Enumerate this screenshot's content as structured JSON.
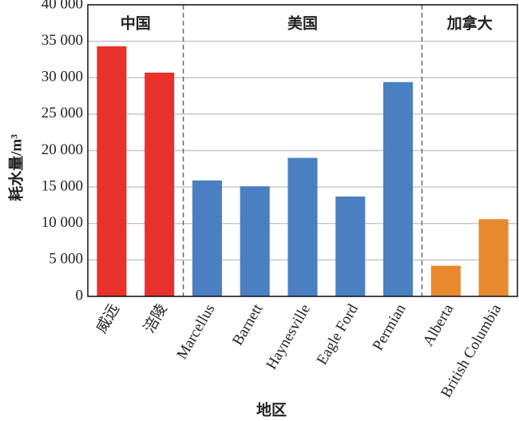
{
  "chart_data": {
    "type": "bar",
    "y_label": "耗水量/m³",
    "x_label": "地区",
    "categories": [
      "威远",
      "涪陵",
      "Marcellus",
      "Barnett",
      "Haynesville",
      "Eagle Ford",
      "Permian",
      "Alberta",
      "British Columbia"
    ],
    "series": [
      {
        "name": "中国",
        "color": "#e8312a",
        "values": [
          34300,
          30700,
          null,
          null,
          null,
          null,
          null,
          null,
          null
        ]
      },
      {
        "name": "美国",
        "color": "#4a7fc1",
        "values": [
          null,
          null,
          15900,
          15100,
          19000,
          13700,
          29400,
          null,
          null
        ]
      },
      {
        "name": "加拿大",
        "color": "#e8892f",
        "values": [
          null,
          null,
          null,
          null,
          null,
          null,
          null,
          4200,
          10600
        ]
      }
    ],
    "ylim": [
      0,
      40000
    ],
    "yticks": [
      0,
      {
        "value": 5000,
        "label": "5 000"
      },
      {
        "value": 10000,
        "label": "10 000"
      },
      {
        "value": 15000,
        "label": "15 000"
      },
      {
        "value": 20000,
        "label": "20 000"
      },
      {
        "value": 25000,
        "label": "25 000"
      },
      {
        "value": 30000,
        "label": "30 000"
      },
      {
        "value": 35000,
        "label": "35 000"
      },
      {
        "value": 40000,
        "label": "40 000"
      }
    ],
    "grid": true
  }
}
